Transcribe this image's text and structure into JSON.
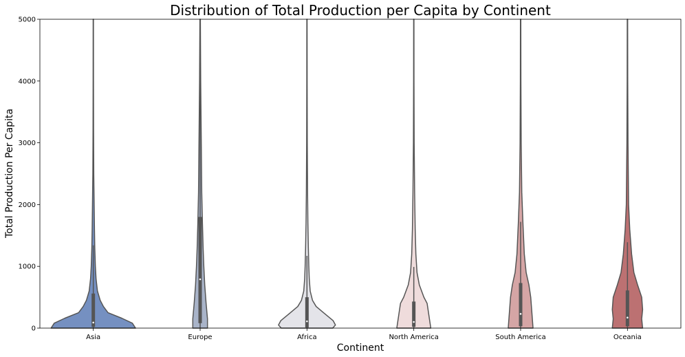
{
  "chart_data": {
    "type": "violin",
    "title": "Distribution of Total Production per Capita by Continent",
    "xlabel": "Continent",
    "ylabel": "Total Production Per Capita",
    "ylim": [
      0,
      5000
    ],
    "yticks": [
      0,
      1000,
      2000,
      3000,
      4000,
      5000
    ],
    "grid": false,
    "categories": [
      "Asia",
      "Europe",
      "Africa",
      "North America",
      "South America",
      "Oceania"
    ],
    "colors": [
      "#7590c1",
      "#a9b4c9",
      "#e4e4e9",
      "#efdcdc",
      "#d5a5a5",
      "#bc7172"
    ],
    "series": [
      {
        "category": "Asia",
        "q1": 20,
        "median": 90,
        "q3": 560,
        "whisker_low": 0,
        "whisker_high": 1340,
        "density": [
          [
            0,
            0.92
          ],
          [
            80,
            0.85
          ],
          [
            160,
            0.62
          ],
          [
            250,
            0.32
          ],
          [
            350,
            0.22
          ],
          [
            450,
            0.15
          ],
          [
            600,
            0.09
          ],
          [
            800,
            0.06
          ],
          [
            1000,
            0.045
          ],
          [
            1300,
            0.032
          ],
          [
            1600,
            0.025
          ],
          [
            2000,
            0.018
          ],
          [
            2500,
            0.01
          ],
          [
            3200,
            0.006
          ],
          [
            4000,
            0.004
          ],
          [
            5000,
            0.003
          ]
        ]
      },
      {
        "category": "Europe",
        "q1": 80,
        "median": 790,
        "q3": 1800,
        "whisker_low": 0,
        "whisker_high": 4300,
        "density": [
          [
            0,
            0.16
          ],
          [
            150,
            0.16
          ],
          [
            400,
            0.13
          ],
          [
            700,
            0.1
          ],
          [
            1000,
            0.08
          ],
          [
            1300,
            0.065
          ],
          [
            1700,
            0.05
          ],
          [
            2200,
            0.035
          ],
          [
            3000,
            0.025
          ],
          [
            4000,
            0.012
          ],
          [
            5000,
            0.005
          ]
        ]
      },
      {
        "category": "Africa",
        "q1": 10,
        "median": 110,
        "q3": 500,
        "whisker_low": 0,
        "whisker_high": 1170,
        "density": [
          [
            0,
            0.56
          ],
          [
            50,
            0.62
          ],
          [
            120,
            0.57
          ],
          [
            250,
            0.36
          ],
          [
            350,
            0.2
          ],
          [
            450,
            0.12
          ],
          [
            600,
            0.07
          ],
          [
            800,
            0.05
          ],
          [
            1000,
            0.04
          ],
          [
            1300,
            0.03
          ],
          [
            1700,
            0.02
          ],
          [
            2200,
            0.013
          ],
          [
            3000,
            0.007
          ],
          [
            4000,
            0.004
          ],
          [
            5000,
            0.003
          ]
        ]
      },
      {
        "category": "North America",
        "q1": 20,
        "median": 100,
        "q3": 430,
        "whisker_low": 0,
        "whisker_high": 990,
        "density": [
          [
            0,
            0.37
          ],
          [
            100,
            0.35
          ],
          [
            250,
            0.32
          ],
          [
            400,
            0.29
          ],
          [
            500,
            0.22
          ],
          [
            700,
            0.12
          ],
          [
            900,
            0.07
          ],
          [
            1200,
            0.045
          ],
          [
            1600,
            0.03
          ],
          [
            2200,
            0.018
          ],
          [
            3000,
            0.008
          ],
          [
            4000,
            0.004
          ],
          [
            5000,
            0.003
          ]
        ]
      },
      {
        "category": "South America",
        "q1": 30,
        "median": 230,
        "q3": 730,
        "whisker_low": 0,
        "whisker_high": 1720,
        "density": [
          [
            0,
            0.27
          ],
          [
            100,
            0.26
          ],
          [
            300,
            0.24
          ],
          [
            500,
            0.22
          ],
          [
            700,
            0.18
          ],
          [
            900,
            0.12
          ],
          [
            1200,
            0.08
          ],
          [
            1700,
            0.05
          ],
          [
            2200,
            0.025
          ],
          [
            3000,
            0.012
          ],
          [
            4000,
            0.006
          ],
          [
            5000,
            0.004
          ]
        ]
      },
      {
        "category": "Oceania",
        "q1": 30,
        "median": 170,
        "q3": 610,
        "whisker_low": 0,
        "whisker_high": 1390,
        "density": [
          [
            0,
            0.33
          ],
          [
            150,
            0.31
          ],
          [
            300,
            0.33
          ],
          [
            500,
            0.31
          ],
          [
            700,
            0.22
          ],
          [
            900,
            0.14
          ],
          [
            1200,
            0.09
          ],
          [
            1600,
            0.05
          ],
          [
            2000,
            0.025
          ],
          [
            3000,
            0.012
          ],
          [
            4000,
            0.006
          ],
          [
            5000,
            0.004
          ]
        ]
      }
    ]
  }
}
